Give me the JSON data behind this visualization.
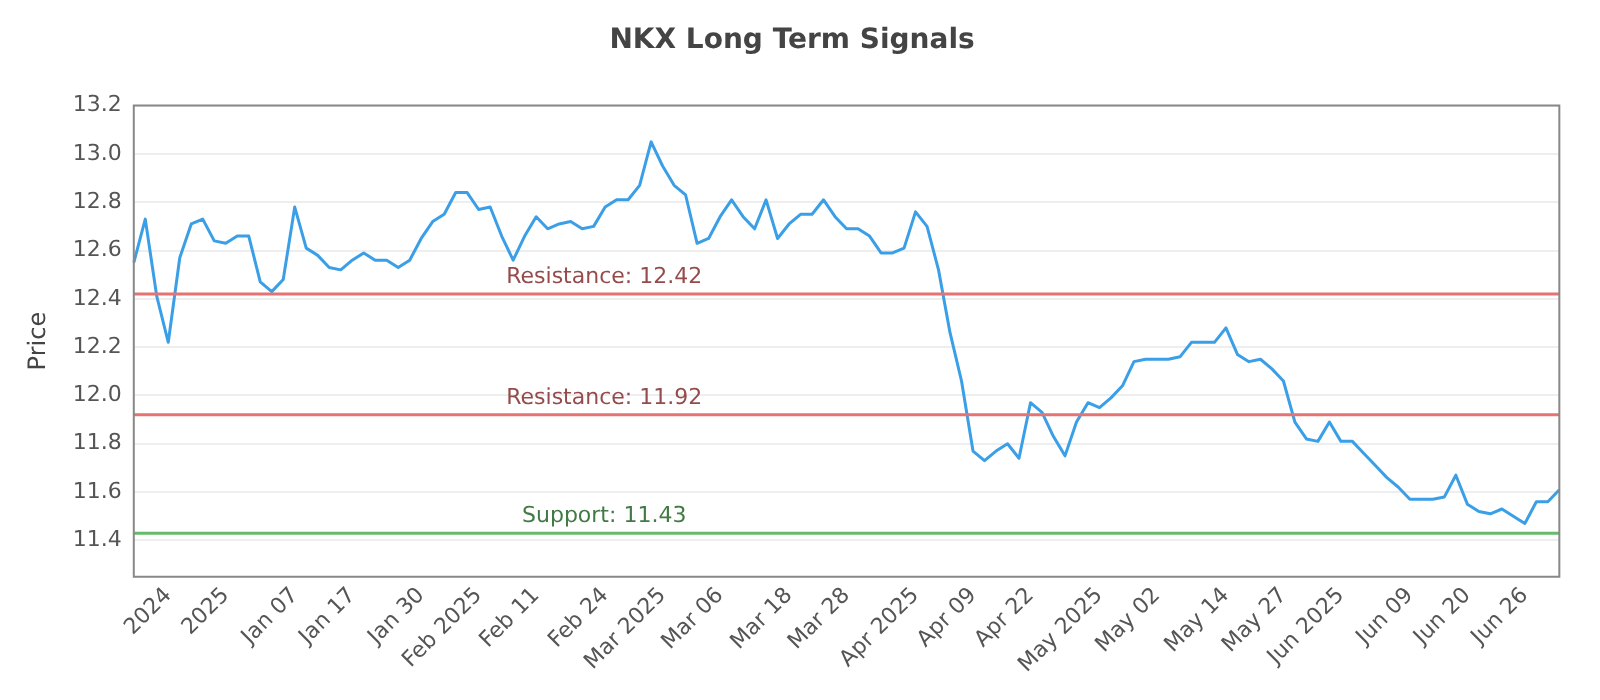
{
  "chart_data": {
    "type": "line",
    "title": "NKX Long Term Signals",
    "ylabel": "Price",
    "categories": [
      null,
      null,
      null,
      "2024",
      null,
      null,
      null,
      null,
      "2025",
      null,
      null,
      null,
      null,
      null,
      "Jan 07",
      null,
      null,
      null,
      null,
      "Jan 17",
      null,
      null,
      null,
      null,
      null,
      "Jan 30",
      null,
      null,
      null,
      null,
      "Feb 2025",
      null,
      null,
      null,
      null,
      "Feb 11",
      null,
      null,
      null,
      null,
      null,
      "Feb 24",
      null,
      null,
      null,
      null,
      "Mar 2025",
      null,
      null,
      null,
      null,
      "Mar 06",
      null,
      null,
      null,
      null,
      null,
      "Mar 18",
      null,
      null,
      null,
      null,
      "Mar 28",
      null,
      null,
      null,
      null,
      null,
      "Apr 2025",
      null,
      null,
      null,
      null,
      "Apr 09",
      null,
      null,
      null,
      null,
      "Apr 22",
      null,
      null,
      null,
      null,
      null,
      "May 2025",
      null,
      null,
      null,
      null,
      "May 02",
      null,
      null,
      null,
      null,
      null,
      "May 14",
      null,
      null,
      null,
      null,
      "May 27",
      null,
      null,
      null,
      null,
      "Jun 2025",
      null,
      null,
      null,
      null,
      null,
      "Jun 09",
      null,
      null,
      null,
      null,
      "Jun 20",
      null,
      null,
      null,
      null,
      "Jun 26",
      null,
      null,
      null
    ],
    "series": [
      {
        "color": "#3a9fe6",
        "values": [
          12.55,
          12.73,
          12.41,
          12.22,
          12.57,
          12.71,
          12.73,
          12.64,
          12.63,
          12.66,
          12.66,
          12.47,
          12.43,
          12.48,
          12.78,
          12.61,
          12.58,
          12.53,
          12.52,
          12.56,
          12.59,
          12.56,
          12.56,
          12.53,
          12.56,
          12.65,
          12.72,
          12.75,
          12.84,
          12.84,
          12.77,
          12.78,
          12.66,
          12.56,
          12.66,
          12.74,
          12.69,
          12.71,
          12.72,
          12.69,
          12.7,
          12.78,
          12.81,
          12.81,
          12.87,
          13.05,
          12.95,
          12.87,
          12.83,
          12.63,
          12.65,
          12.74,
          12.81,
          12.74,
          12.69,
          12.81,
          12.65,
          12.71,
          12.75,
          12.75,
          12.81,
          12.74,
          12.69,
          12.69,
          12.66,
          12.59,
          12.59,
          12.61,
          12.76,
          12.7,
          12.52,
          12.26,
          12.06,
          11.77,
          11.73,
          11.77,
          11.8,
          11.74,
          11.97,
          11.93,
          11.83,
          11.75,
          11.89,
          11.97,
          11.95,
          11.99,
          12.04,
          12.14,
          12.15,
          12.15,
          12.15,
          12.16,
          12.22,
          12.22,
          12.22,
          12.28,
          12.17,
          12.14,
          12.15,
          12.11,
          12.06,
          11.89,
          11.82,
          11.81,
          11.89,
          11.81,
          11.81,
          11.76,
          11.71,
          11.66,
          11.62,
          11.57,
          11.57,
          11.57,
          11.58,
          11.67,
          11.55,
          11.52,
          11.51,
          11.53,
          11.5,
          11.47,
          11.56,
          11.56,
          11.61
        ]
      }
    ],
    "ylim": [
      11.25,
      13.2
    ],
    "yticks": [
      11.4,
      11.6,
      11.8,
      {
        "value": 12,
        "label": "12.0"
      },
      12.2,
      12.4,
      12.6,
      12.8,
      {
        "value": 13,
        "label": "13.0"
      },
      13.2
    ],
    "grid": "y",
    "legend": false,
    "marker": "none",
    "line_style": "solid",
    "ref_lines": [
      {
        "axis": "y",
        "value": 12.42,
        "label": "Resistance: 12.42",
        "color": "#e57373"
      },
      {
        "axis": "y",
        "value": 11.92,
        "label": "Resistance: 11.92",
        "color": "#e57373"
      },
      {
        "axis": "y",
        "value": 11.43,
        "label": "Support: 11.43",
        "color": "#66bb6a"
      }
    ]
  }
}
